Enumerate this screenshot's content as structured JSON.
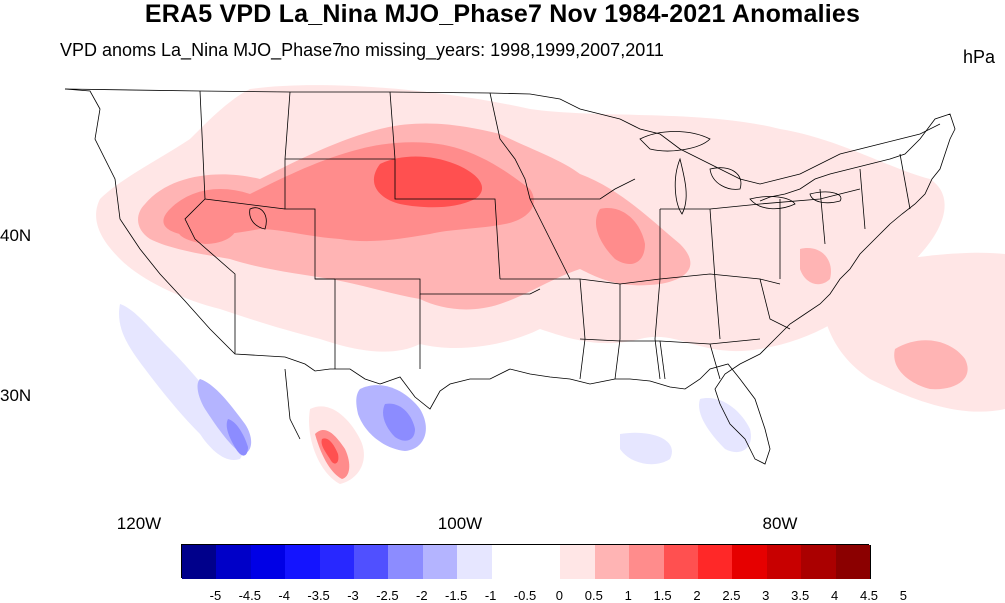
{
  "figure": {
    "title": "ERA5 VPD La_Nina MJO_Phase7 Nov 1984-2021 Anomalies",
    "left_subtitle": "VPD anoms La_Nina MJO_Phase7",
    "center_subtitle": "no missing_years: 1998,1999,2007,2011",
    "units": "hPa"
  },
  "axes": {
    "lat_labels": [
      "40N",
      "30N"
    ],
    "lon_labels": [
      "120W",
      "100W",
      "80W"
    ]
  },
  "colorbar": {
    "colors": [
      "#00008b",
      "#0000c8",
      "#0000e6",
      "#1414ff",
      "#2828ff",
      "#5050ff",
      "#8c8cff",
      "#b4b4ff",
      "#e6e6ff",
      "#ffffff",
      "#ffffff",
      "#ffe6e6",
      "#ffb4b4",
      "#ff8c8c",
      "#ff5050",
      "#ff2828",
      "#e60000",
      "#c80000",
      "#aa0000",
      "#8b0000"
    ],
    "ticks": [
      "-5",
      "-4.5",
      "-4",
      "-3.5",
      "-3",
      "-2.5",
      "-2",
      "-1.5",
      "-1",
      "-0.5",
      "0",
      "0.5",
      "1",
      "1.5",
      "2",
      "2.5",
      "3",
      "3.5",
      "4",
      "4.5",
      "5"
    ]
  },
  "colors": {
    "light_pink": "#ffe6e6",
    "pink": "#ffb4b4",
    "salmon": "#ff8c8c",
    "red": "#ff5050",
    "light_blue": "#e6e6ff",
    "blue": "#8c8cff",
    "deep_blue": "#5050ff"
  }
}
